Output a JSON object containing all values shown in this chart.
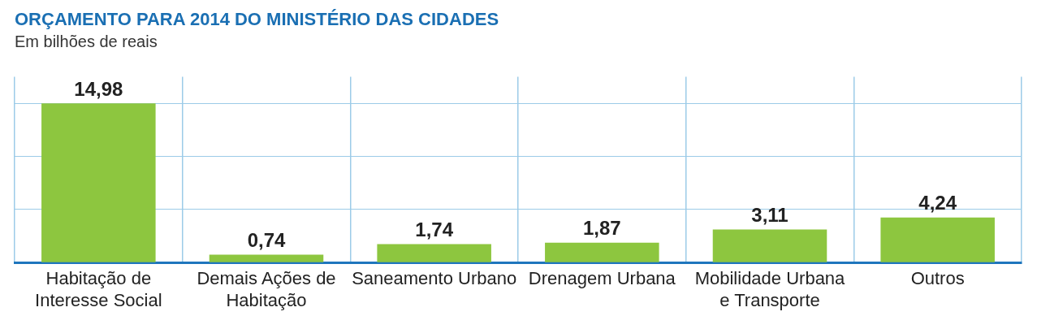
{
  "chart_data": {
    "type": "bar",
    "title": "ORÇAMENTO PARA 2014 DO MINISTÉRIO DAS CIDADES",
    "subtitle": "Em bilhões de reais",
    "categories": [
      "Habitação de Interesse Social",
      "Demais Ações de Habitação",
      "Saneamento Urbano",
      "Drenagem Urbana",
      "Mobilidade Urbana e Transporte",
      "Outros"
    ],
    "values": [
      14.98,
      0.74,
      1.74,
      1.87,
      3.11,
      4.24
    ],
    "value_labels": [
      "14,98",
      "0,74",
      "1,74",
      "1,87",
      "3,11",
      "4,24"
    ],
    "color": "#8dc63f",
    "ylim": [
      0,
      17.5
    ],
    "yticks": [
      {
        "value": 0,
        "label": null
      },
      {
        "value": 5,
        "label": null
      },
      {
        "value": 10,
        "label": null
      },
      {
        "value": 15,
        "label": null
      }
    ],
    "grid": true,
    "legend": false,
    "tick_labels": "x"
  }
}
